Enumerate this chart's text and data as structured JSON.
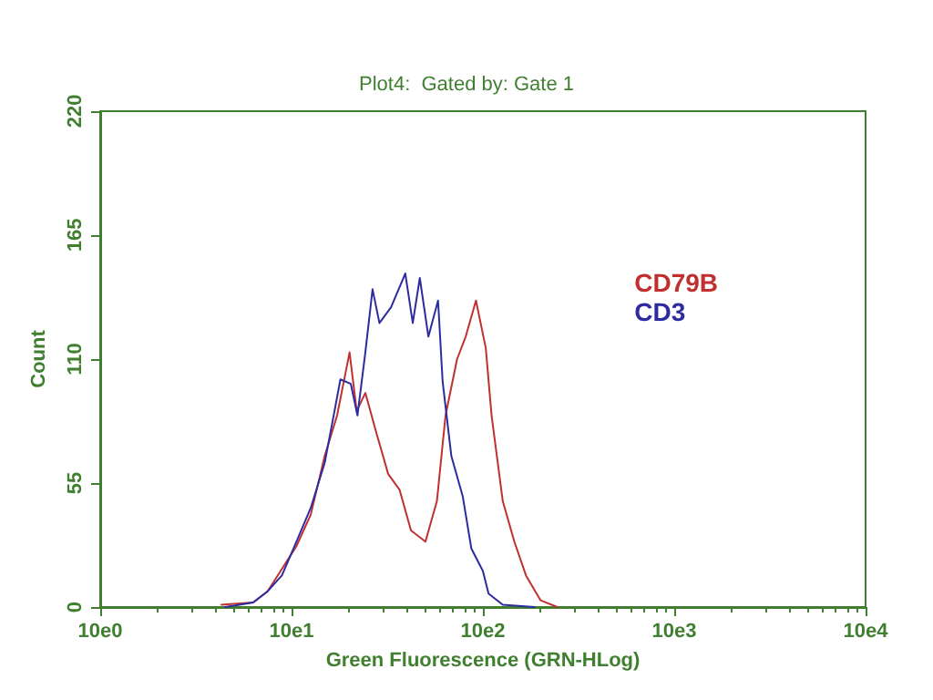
{
  "chart_data": {
    "type": "line",
    "title": "Plot4:  Gated by: Gate 1",
    "xlabel": "Green Fluorescence (GRN-HLog)",
    "ylabel": "Count",
    "log": "x",
    "xlim": [
      10,
      100000
    ],
    "xticks": [
      {
        "value": 10,
        "label": "10e0"
      },
      {
        "value": 100,
        "label": "10e1"
      },
      {
        "value": 1000,
        "label": "10e2"
      },
      {
        "value": 10000,
        "label": "10e3"
      },
      {
        "value": 100000,
        "label": "10e4"
      }
    ],
    "ylim": [
      0,
      220
    ],
    "yticks": [
      0,
      55,
      110,
      165,
      220
    ],
    "grid": false,
    "legend": "top right",
    "marker": "none",
    "line_style": "solid",
    "series": [
      {
        "name": "CD79B",
        "color": "#c03030",
        "x": [
          43,
          63,
          75,
          106,
          126,
          149,
          173,
          201,
          219,
          243,
          278,
          320,
          367,
          421,
          501,
          575,
          638,
          733,
          813,
          920,
          1035,
          1110,
          1270,
          1460,
          1680,
          2000,
          2450
        ],
        "values": [
          1,
          2,
          7,
          27,
          41,
          67,
          85,
          113,
          87,
          95,
          77,
          59,
          52,
          34,
          29,
          47,
          85,
          110,
          120,
          136,
          115,
          85,
          47,
          29,
          14,
          3,
          0
        ]
      },
      {
        "name": "CD3",
        "color": "#2c2ca0",
        "x": [
          45,
          63,
          75,
          89,
          106,
          126,
          149,
          166,
          180,
          204,
          221,
          243,
          265,
          288,
          331,
          393,
          430,
          468,
          519,
          583,
          616,
          684,
          785,
          870,
          1000,
          1070,
          1270,
          1860
        ],
        "values": [
          0,
          2,
          7,
          14,
          29,
          44,
          64,
          85,
          101,
          99,
          85,
          113,
          141,
          126,
          133,
          148,
          126,
          146,
          120,
          136,
          100,
          67,
          49,
          26,
          16,
          6,
          1,
          0
        ]
      }
    ]
  }
}
